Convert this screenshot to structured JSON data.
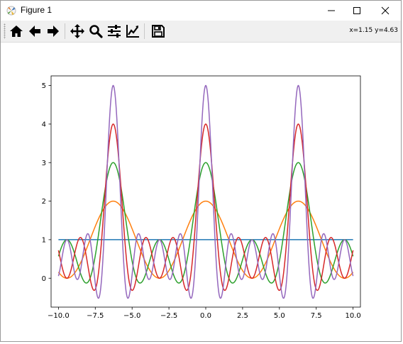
{
  "window": {
    "title": "Figure 1"
  },
  "toolbar": {
    "buttons": [
      {
        "name": "home-icon"
      },
      {
        "name": "back-icon"
      },
      {
        "name": "forward-icon"
      },
      {
        "name": "pan-icon"
      },
      {
        "name": "zoom-icon"
      },
      {
        "name": "configure-subplots-icon"
      },
      {
        "name": "edit-axis-icon"
      },
      {
        "name": "save-icon"
      }
    ],
    "coords_text": "x=1.15 y=4.63"
  },
  "chart_data": {
    "type": "line",
    "title": "",
    "xlabel": "",
    "ylabel": "",
    "xlim": [
      -10.5,
      10.5
    ],
    "ylim": [
      -0.75,
      5.25
    ],
    "xticks": [
      "−10.0",
      "−7.5",
      "−5.0",
      "−2.5",
      "0.0",
      "2.5",
      "5.0",
      "7.5",
      "10.0"
    ],
    "xtick_values": [
      -10,
      -7.5,
      -5,
      -2.5,
      0,
      2.5,
      5,
      7.5,
      10
    ],
    "yticks": [
      "0",
      "1",
      "2",
      "3",
      "4",
      "5"
    ],
    "ytick_values": [
      0,
      1,
      2,
      3,
      4,
      5
    ],
    "grid": false,
    "legend": "none",
    "x_range": [
      -10,
      10
    ],
    "series": [
      {
        "color": "#1f77b4",
        "harmonics": 0,
        "peak": 1
      },
      {
        "color": "#ff7f0e",
        "harmonics": 1,
        "peak": 2
      },
      {
        "color": "#2ca02c",
        "harmonics": 2,
        "peak": 3
      },
      {
        "color": "#d62728",
        "harmonics": 3,
        "peak": 4
      },
      {
        "color": "#9467bd",
        "harmonics": 4,
        "peak": 5
      }
    ]
  }
}
